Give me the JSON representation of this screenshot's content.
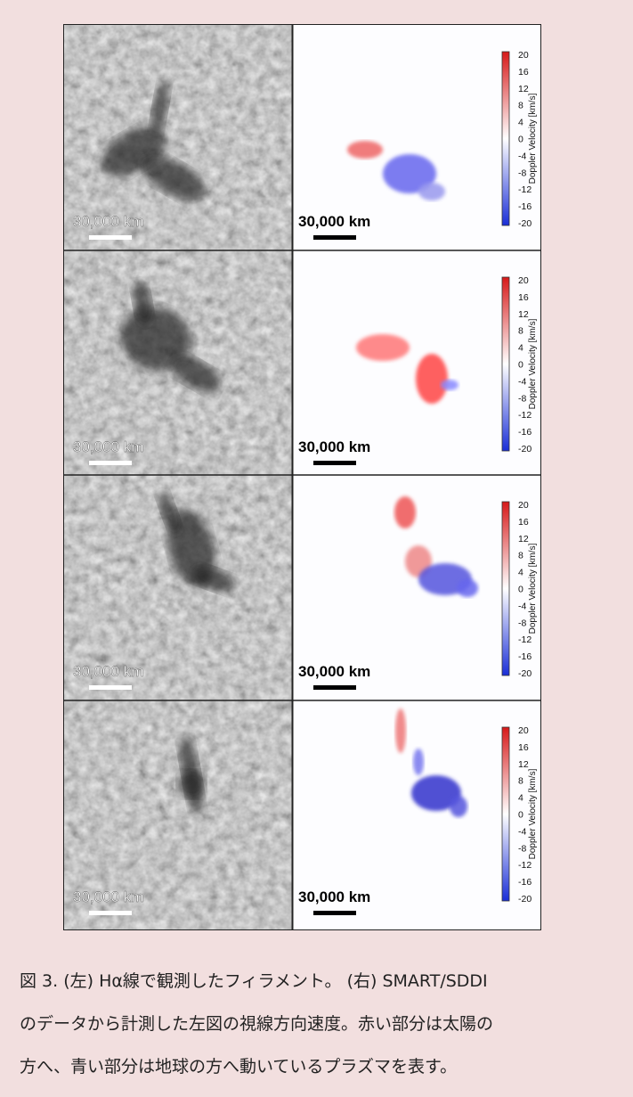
{
  "figure": {
    "panels": [
      {
        "left_scale": "30,000 km",
        "right_scale": "30,000 km",
        "colorbar": {
          "label": "Doppler Velocity [km/s]",
          "ticks": [
            20,
            16,
            12,
            8,
            4,
            0,
            -4,
            -8,
            -12,
            -16,
            -20
          ]
        }
      },
      {
        "left_scale": "30,000 km",
        "right_scale": "30,000 km",
        "colorbar": {
          "label": "Doppler Velocity [km/s]",
          "ticks": [
            20,
            16,
            12,
            8,
            4,
            0,
            -4,
            -8,
            -12,
            -16,
            -20
          ]
        }
      },
      {
        "left_scale": "30,000 km",
        "right_scale": "30,000 km",
        "colorbar": {
          "label": "Doppler Velocity [km/s]",
          "ticks": [
            20,
            16,
            12,
            8,
            4,
            0,
            -4,
            -8,
            -12,
            -16,
            -20
          ]
        }
      },
      {
        "left_scale": "30,000 km",
        "right_scale": "30,000 km",
        "colorbar": {
          "label": "Doppler Velocity [km/s]",
          "ticks": [
            20,
            16,
            12,
            8,
            4,
            0,
            -4,
            -8,
            -12,
            -16,
            -20
          ]
        }
      }
    ]
  },
  "caption": {
    "lines": [
      "図 3. (左) Hα線で観測したフィラメント。 (右) SMART/SDDI",
      "のデータから計測した左図の視線方向速度。赤い部分は太陽の",
      "方へ、青い部分は地球の方へ動いているプラズマを表す。"
    ]
  }
}
